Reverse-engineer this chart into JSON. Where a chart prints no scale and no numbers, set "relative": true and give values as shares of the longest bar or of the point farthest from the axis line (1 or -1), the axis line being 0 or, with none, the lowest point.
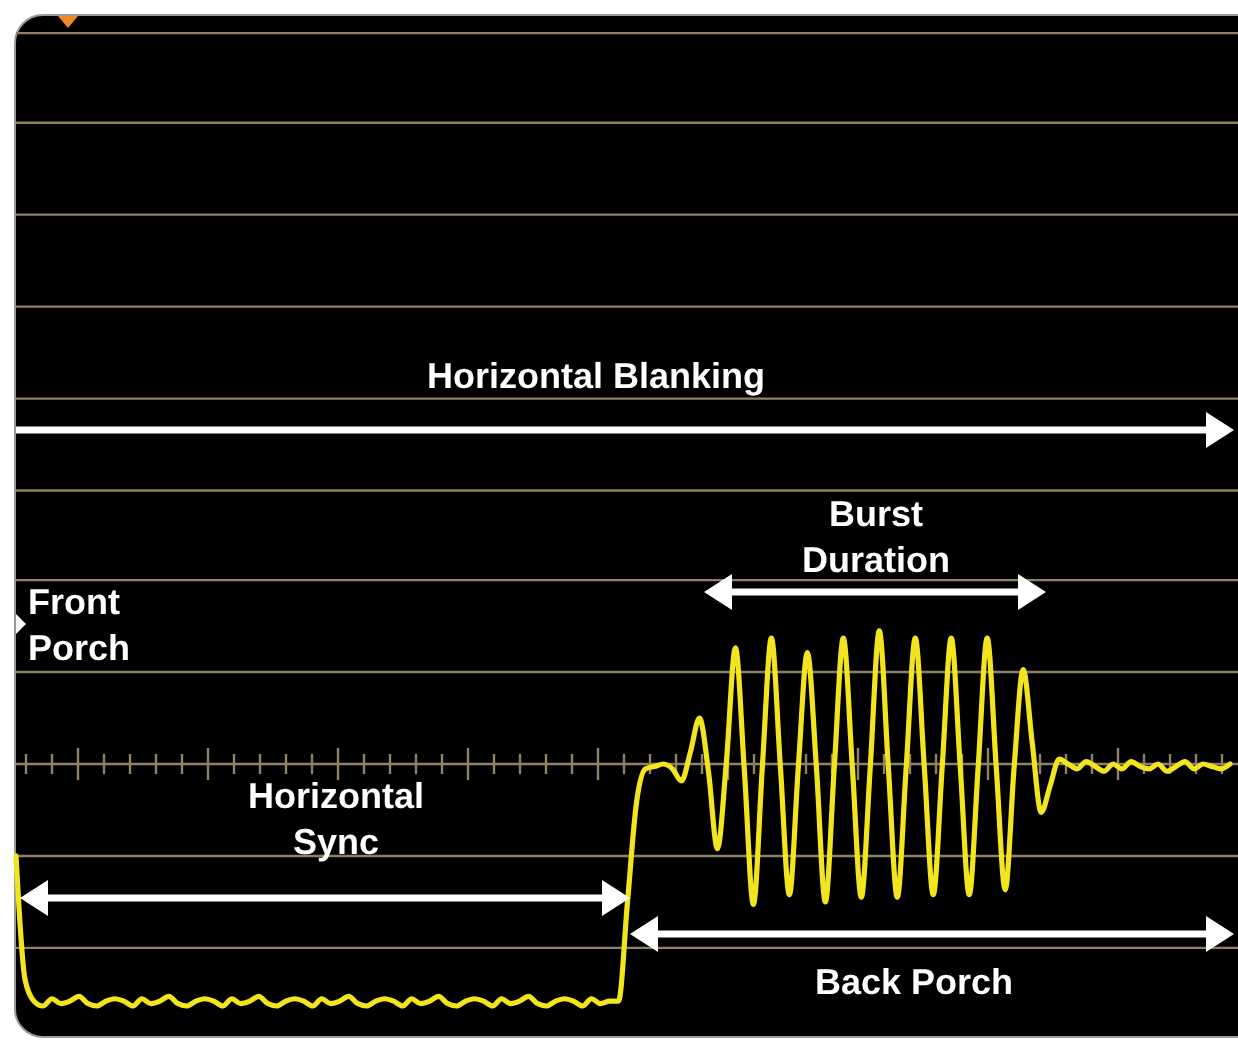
{
  "chart_data": {
    "type": "line",
    "relative": true,
    "ref_lines": [
      {
        "axis": "y",
        "value": 3.02,
        "color": "#8f8166"
      },
      {
        "axis": "y",
        "value": 2.65,
        "color": "#8f8166"
      },
      {
        "axis": "y",
        "value": 2.27,
        "color": "#8f8166"
      },
      {
        "axis": "y",
        "value": 1.89,
        "color": "#8f8166"
      },
      {
        "axis": "y",
        "value": 1.51,
        "color": "#8f8166"
      },
      {
        "axis": "y",
        "value": 1.13,
        "color": "#8f8166"
      },
      {
        "axis": "y",
        "value": 0.76,
        "color": "#8f8166"
      },
      {
        "axis": "y",
        "value": 0.38,
        "color": "#8f8166"
      },
      {
        "axis": "y",
        "value": 0,
        "color": "#8f8166"
      },
      {
        "axis": "y",
        "value": -0.38,
        "color": "#8f8166"
      },
      {
        "axis": "y",
        "value": -0.76,
        "color": "#8f8166"
      }
    ],
    "categories": [
      null,
      null,
      null,
      null,
      null,
      null,
      null,
      null,
      null,
      null,
      null,
      null,
      null,
      null,
      null,
      null,
      null,
      null,
      null,
      null,
      null,
      null,
      null,
      null,
      null,
      null,
      null,
      null,
      null,
      null,
      null,
      null,
      null,
      null,
      null,
      null,
      null,
      null,
      null,
      null,
      null,
      null,
      null,
      null,
      null,
      null,
      null,
      null,
      null,
      null,
      null,
      null,
      null,
      null,
      null,
      null,
      null,
      null,
      null,
      null,
      null,
      null,
      null,
      null,
      null,
      null,
      null,
      null,
      null,
      null,
      null,
      null,
      null,
      null,
      null,
      null,
      null,
      null,
      null,
      null,
      null,
      null,
      null,
      null,
      null,
      null,
      null,
      null,
      null,
      null,
      null,
      null,
      null,
      null,
      null,
      null,
      null,
      null,
      null,
      null,
      null,
      null,
      null,
      null,
      null,
      null,
      null,
      null,
      null,
      null,
      null,
      null,
      null,
      null,
      null,
      null,
      null,
      null,
      null,
      null,
      null,
      null,
      null,
      null,
      null,
      null,
      null,
      null,
      null,
      null,
      null,
      null,
      null,
      null,
      null,
      null
    ],
    "series": [
      {
        "color": "#f2e51d",
        "values": [
          -0.38,
          -0.89,
          -0.98,
          -1,
          -0.97,
          -0.99,
          -0.98,
          -0.96,
          -0.99,
          -1,
          -0.98,
          -0.97,
          -0.98,
          -1,
          -0.97,
          -0.99,
          -0.98,
          -0.96,
          -0.99,
          -1,
          -0.98,
          -0.97,
          -0.98,
          -1,
          -0.97,
          -0.99,
          -0.98,
          -0.96,
          -0.99,
          -1,
          -0.98,
          -0.97,
          -0.98,
          -1,
          -0.97,
          -0.99,
          -0.98,
          -0.96,
          -0.99,
          -1,
          -0.98,
          -0.97,
          -0.98,
          -1,
          -0.97,
          -0.99,
          -0.98,
          -0.96,
          -0.99,
          -1,
          -0.98,
          -0.97,
          -0.98,
          -1,
          -0.97,
          -0.99,
          -0.98,
          -0.96,
          -0.99,
          -1,
          -0.98,
          -0.97,
          -0.98,
          -1,
          -0.97,
          -0.99,
          -0.98,
          -0.98,
          -0.57,
          -0.16,
          -0.02,
          -0.01,
          0,
          -0.02,
          -0.07,
          0.05,
          0.19,
          -0.03,
          -0.35,
          0.01,
          0.48,
          -0.03,
          -0.58,
          -0.01,
          0.52,
          -0.01,
          -0.54,
          -0.01,
          0.46,
          -0.01,
          -0.57,
          -0.01,
          0.52,
          -0.01,
          -0.55,
          -0.01,
          0.55,
          -0.01,
          -0.55,
          -0.01,
          0.52,
          -0.01,
          -0.54,
          -0.01,
          0.52,
          -0.01,
          -0.54,
          -0.01,
          0.52,
          -0.01,
          -0.52,
          -0.01,
          0.39,
          0.09,
          -0.2,
          -0.09,
          0.02,
          0,
          -0.02,
          0.01,
          -0.01,
          -0.03,
          0,
          -0.02,
          0.01,
          -0.01,
          -0.02,
          0,
          -0.03,
          -0.01,
          0.01,
          -0.02,
          0,
          -0.01,
          -0.02,
          0
        ]
      }
    ],
    "annotations": [
      "Horizontal Blanking",
      "Burst Duration",
      "Front Porch",
      "Horizontal Sync",
      "Back Porch"
    ]
  }
}
